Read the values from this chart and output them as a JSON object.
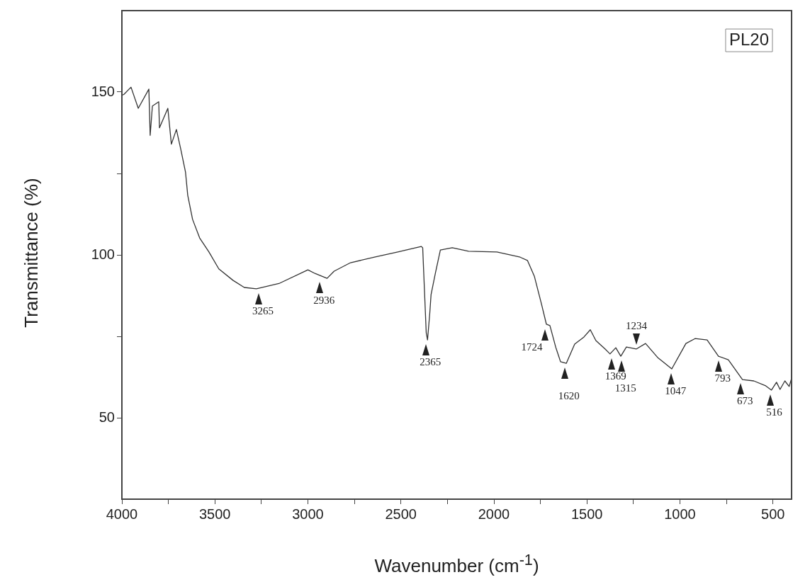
{
  "chart_data": {
    "type": "line",
    "xlabel": "Wavenumber (cm$^{-1}$)",
    "ylabel": "Transmittance (%)",
    "xlim": [
      4000,
      400
    ],
    "ylim": [
      25,
      175
    ],
    "xticks": [
      4000,
      {
        "value": 3750,
        "label": null
      },
      3500,
      {
        "value": 3250,
        "label": null
      },
      3000,
      {
        "value": 2750,
        "label": null
      },
      2500,
      {
        "value": 2250,
        "label": null
      },
      2000,
      {
        "value": 1750,
        "label": null
      },
      1500,
      {
        "value": 1250,
        "label": null
      },
      1000,
      {
        "value": 750,
        "label": null
      },
      500
    ],
    "yticks": [
      50,
      {
        "value": 75,
        "label": null
      },
      100,
      {
        "value": 125,
        "label": null
      },
      150
    ],
    "grid": false,
    "legend": false,
    "marker": "none",
    "line_style": "solid",
    "series": [
      {
        "color": "#333333",
        "x": [
          4000,
          3989,
          3951,
          3912,
          3855,
          3848,
          3836,
          3802,
          3798,
          3753,
          3734,
          3707,
          3684,
          3658,
          3646,
          3620,
          3582,
          3532,
          3479,
          3403,
          3342,
          3277,
          3152,
          3000,
          2962,
          2897,
          2859,
          2771,
          2642,
          2517,
          2391,
          2383,
          2364,
          2357,
          2345,
          2338,
          2315,
          2288,
          2224,
          2136,
          1984,
          1859,
          1820,
          1783,
          1744,
          1718,
          1699,
          1668,
          1642,
          1611,
          1566,
          1516,
          1482,
          1452,
          1402,
          1376,
          1345,
          1318,
          1288,
          1235,
          1185,
          1120,
          1044,
          968,
          919,
          854,
          793,
          740,
          664,
          603,
          539,
          508,
          481,
          462,
          436,
          413,
          402
        ],
        "values": [
          149,
          149.3,
          151.5,
          145,
          150.9,
          136.7,
          145.7,
          147,
          139,
          145,
          134,
          138.5,
          132.6,
          125.4,
          118.3,
          110.9,
          105.2,
          100.9,
          95.7,
          92.2,
          90,
          89.6,
          91.3,
          95.4,
          94.3,
          92.8,
          95,
          97.6,
          99.3,
          100.9,
          102.6,
          102.2,
          76.1,
          73.9,
          82,
          87.8,
          94.3,
          101.5,
          102.2,
          101.1,
          100.9,
          99.3,
          98.3,
          93.5,
          84.8,
          78.7,
          78.3,
          71.7,
          67.2,
          66.7,
          72.6,
          74.8,
          77,
          73.7,
          71.1,
          69.6,
          71.5,
          68.9,
          71.7,
          71.1,
          72.8,
          68.5,
          65,
          72.8,
          74.3,
          73.9,
          68.9,
          67.8,
          61.7,
          61.3,
          59.8,
          58.5,
          60.9,
          58.7,
          61.3,
          59.6,
          61.7
        ]
      }
    ],
    "annotations": [
      "PL20",
      {
        "text": "3265",
        "x": 3265,
        "y": 89.6
      },
      {
        "text": "2936",
        "x": 2936,
        "y": 93
      },
      {
        "text": "2365",
        "x": 2365,
        "y": 74
      },
      {
        "text": "1724",
        "x": 1724,
        "y": 78.5
      },
      {
        "text": "1620",
        "x": 1620,
        "y": 66.7
      },
      {
        "text": "1369",
        "x": 1369,
        "y": 69.6
      },
      {
        "text": "1315",
        "x": 1315,
        "y": 69
      },
      {
        "text": "1234",
        "x": 1234,
        "y": 71
      },
      {
        "text": "1047",
        "x": 1047,
        "y": 65
      },
      {
        "text": "793",
        "x": 793,
        "y": 69
      },
      {
        "text": "673",
        "x": 673,
        "y": 62
      },
      {
        "text": "516",
        "x": 516,
        "y": 58.5
      }
    ]
  }
}
